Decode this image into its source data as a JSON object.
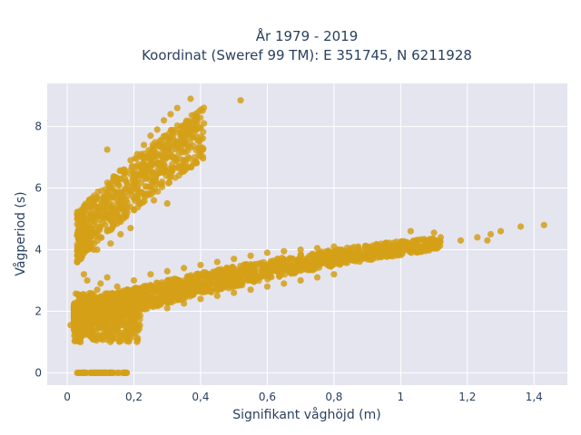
{
  "chart_data": {
    "type": "scatter",
    "title": "År 1979 - 2019",
    "subtitle": "Koordinat (Sweref 99 TM): E 351745, N 6211928",
    "xlabel": "Signifikant våghöjd (m)",
    "ylabel": "Vågperiod (s)",
    "xlim": [
      -0.06,
      1.5
    ],
    "ylim": [
      -0.4,
      9.4
    ],
    "x_ticks": [
      0,
      0.2,
      0.4,
      0.6,
      0.8,
      1,
      1.2,
      1.4
    ],
    "x_tick_labels": [
      "0",
      "0,2",
      "0,4",
      "0,6",
      "0,8",
      "1",
      "1,2",
      "1,4"
    ],
    "y_ticks": [
      0,
      2,
      4,
      6,
      8
    ],
    "y_tick_labels": [
      "0",
      "2",
      "4",
      "6",
      "8"
    ],
    "grid": true,
    "legend": "none",
    "marker_color": "#D4A017",
    "background_color": "#E5E5F0",
    "series": [
      {
        "cluster": "swell",
        "points": [
          [
            0.03,
            3.6
          ],
          [
            0.04,
            4.2
          ],
          [
            0.05,
            4.8
          ],
          [
            0.06,
            5.0
          ],
          [
            0.07,
            5.4
          ],
          [
            0.08,
            5.6
          ],
          [
            0.09,
            5.7
          ],
          [
            0.1,
            5.6
          ],
          [
            0.12,
            5.8
          ],
          [
            0.13,
            6.0
          ],
          [
            0.15,
            6.2
          ],
          [
            0.17,
            6.6
          ],
          [
            0.19,
            6.9
          ],
          [
            0.21,
            7.1
          ],
          [
            0.23,
            7.4
          ],
          [
            0.25,
            7.7
          ],
          [
            0.27,
            7.9
          ],
          [
            0.29,
            8.2
          ],
          [
            0.31,
            8.4
          ],
          [
            0.33,
            8.6
          ],
          [
            0.37,
            8.9
          ],
          [
            0.52,
            8.85
          ],
          [
            0.41,
            8.1
          ],
          [
            0.39,
            8.3
          ],
          [
            0.05,
            3.2
          ],
          [
            0.06,
            3.0
          ],
          [
            0.08,
            4.0
          ],
          [
            0.1,
            4.4
          ],
          [
            0.12,
            4.6
          ],
          [
            0.14,
            4.8
          ],
          [
            0.16,
            5.0
          ],
          [
            0.18,
            5.2
          ],
          [
            0.2,
            5.3
          ],
          [
            0.22,
            5.5
          ],
          [
            0.24,
            5.8
          ],
          [
            0.26,
            6.2
          ],
          [
            0.28,
            6.6
          ],
          [
            0.3,
            7.0
          ],
          [
            0.32,
            7.4
          ],
          [
            0.34,
            7.7
          ],
          [
            0.36,
            7.9
          ],
          [
            0.12,
            7.25
          ],
          [
            0.09,
            4.0
          ],
          [
            0.13,
            4.2
          ],
          [
            0.16,
            4.5
          ],
          [
            0.19,
            4.7
          ],
          [
            0.26,
            5.6
          ],
          [
            0.3,
            5.5
          ]
        ]
      },
      {
        "cluster": "wind_sea",
        "points": [
          [
            0.01,
            1.55
          ],
          [
            0.02,
            1.8
          ],
          [
            0.03,
            1.2
          ],
          [
            0.04,
            1.0
          ],
          [
            0.05,
            1.6
          ],
          [
            0.06,
            1.3
          ],
          [
            0.08,
            1.1
          ],
          [
            0.1,
            1.5
          ],
          [
            0.12,
            1.7
          ],
          [
            0.14,
            1.9
          ],
          [
            0.16,
            2.0
          ],
          [
            0.18,
            2.1
          ],
          [
            0.2,
            2.2
          ],
          [
            0.22,
            2.3
          ],
          [
            0.25,
            2.45
          ],
          [
            0.28,
            2.55
          ],
          [
            0.32,
            2.65
          ],
          [
            0.36,
            2.75
          ],
          [
            0.4,
            2.85
          ],
          [
            0.45,
            2.95
          ],
          [
            0.5,
            3.05
          ],
          [
            0.55,
            3.15
          ],
          [
            0.6,
            3.25
          ],
          [
            0.65,
            3.35
          ],
          [
            0.7,
            3.45
          ],
          [
            0.75,
            3.55
          ],
          [
            0.8,
            3.65
          ],
          [
            0.85,
            3.75
          ],
          [
            0.9,
            3.85
          ],
          [
            0.95,
            3.95
          ],
          [
            1.0,
            4.05
          ],
          [
            1.05,
            4.2
          ],
          [
            1.08,
            4.3
          ],
          [
            1.12,
            4.4
          ],
          [
            1.18,
            4.3
          ],
          [
            1.23,
            4.4
          ],
          [
            1.27,
            4.5
          ],
          [
            1.3,
            4.6
          ],
          [
            1.36,
            4.75
          ],
          [
            1.43,
            4.8
          ],
          [
            1.26,
            4.3
          ],
          [
            1.1,
            4.55
          ],
          [
            1.03,
            4.6
          ],
          [
            0.05,
            2.3
          ],
          [
            0.07,
            2.5
          ],
          [
            0.09,
            2.7
          ],
          [
            0.1,
            2.9
          ],
          [
            0.12,
            3.1
          ],
          [
            0.15,
            2.8
          ],
          [
            0.2,
            3.0
          ],
          [
            0.25,
            3.2
          ],
          [
            0.3,
            3.3
          ],
          [
            0.35,
            3.4
          ],
          [
            0.4,
            3.5
          ],
          [
            0.45,
            3.6
          ],
          [
            0.5,
            3.7
          ],
          [
            0.55,
            3.8
          ],
          [
            0.6,
            3.9
          ],
          [
            0.65,
            3.95
          ],
          [
            0.7,
            4.0
          ],
          [
            0.75,
            4.05
          ],
          [
            0.8,
            4.1
          ],
          [
            0.3,
            2.1
          ],
          [
            0.35,
            2.25
          ],
          [
            0.4,
            2.4
          ],
          [
            0.45,
            2.5
          ],
          [
            0.5,
            2.6
          ],
          [
            0.55,
            2.7
          ],
          [
            0.6,
            2.8
          ],
          [
            0.65,
            2.9
          ],
          [
            0.7,
            3.0
          ],
          [
            0.75,
            3.1
          ],
          [
            0.8,
            3.2
          ]
        ]
      },
      {
        "cluster": "zero_period",
        "points": [
          [
            0.03,
            0.0
          ],
          [
            0.05,
            0.0
          ],
          [
            0.07,
            0.0
          ],
          [
            0.09,
            0.0
          ],
          [
            0.11,
            0.0
          ],
          [
            0.13,
            0.0
          ],
          [
            0.15,
            0.0
          ],
          [
            0.17,
            0.0
          ]
        ]
      }
    ]
  }
}
